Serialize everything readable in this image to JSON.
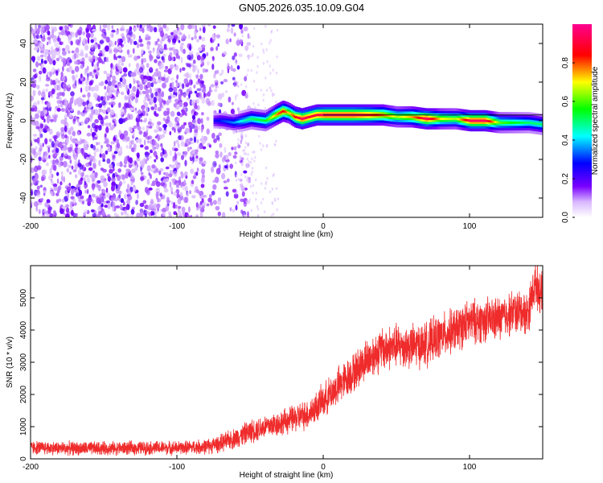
{
  "figure_title": "GN05.2026.035.10.09.G04",
  "chart_data": [
    {
      "type": "heatmap",
      "xlabel": "Height of straight line (km)",
      "ylabel": "Frequency (Hz)",
      "xlim": [
        -200,
        150
      ],
      "ylim": [
        -50,
        50
      ],
      "xticks": [
        -200,
        -100,
        0,
        100
      ],
      "yticks": [
        -40,
        -20,
        0,
        20,
        40
      ],
      "colorbar": {
        "label": "Normalized spectral amplitude",
        "range": [
          0,
          1
        ],
        "ticks": [
          "0.0",
          "0.2",
          "0.4",
          "0.6",
          "0.8"
        ],
        "colors": [
          "#ffffff",
          "#7a00ff",
          "#0000ff",
          "#00ffff",
          "#00ff00",
          "#ffff00",
          "#ff0000",
          "#ff0090"
        ]
      },
      "noise_region": {
        "x_range": [
          -200,
          -55
        ],
        "y_range": [
          -50,
          50
        ],
        "amplitude_range": [
          0.05,
          0.2
        ]
      },
      "ridge_line": {
        "x": [
          -75,
          -70,
          -62,
          -55,
          -50,
          -40,
          -33,
          -28,
          -24,
          -20,
          -15,
          -10,
          -5,
          0,
          10,
          20,
          30,
          40,
          50,
          60,
          70,
          80,
          90,
          100,
          110,
          120,
          130,
          140,
          150
        ],
        "y": [
          0,
          0,
          -1,
          0,
          1,
          0,
          3,
          5,
          4,
          2,
          1,
          2,
          3,
          3,
          3,
          3,
          3,
          3,
          2,
          2,
          1,
          1,
          1,
          0,
          0,
          -1,
          -1,
          -1,
          -2
        ],
        "amplitude": [
          0.25,
          0.3,
          0.35,
          0.45,
          0.5,
          0.55,
          0.75,
          0.85,
          0.7,
          0.85,
          0.95,
          0.9,
          0.9,
          0.95,
          0.95,
          0.95,
          0.9,
          0.8,
          0.65,
          0.75,
          0.95,
          0.7,
          0.65,
          0.95,
          0.95,
          0.6,
          0.55,
          0.5,
          0.5
        ]
      },
      "reference_line": {
        "x": [
          0,
          150
        ],
        "y": [
          3,
          3
        ]
      }
    },
    {
      "type": "line",
      "xlabel": "Height of straight line (km)",
      "ylabel": "SNR (10 * v/v)",
      "xlim": [
        -200,
        150
      ],
      "ylim": [
        0,
        6000
      ],
      "xticks": [
        -200,
        -100,
        0,
        100
      ],
      "yticks": [
        0,
        1000,
        2000,
        3000,
        4000,
        5000
      ],
      "series": [
        {
          "color": "#ef2b2b",
          "x": [
            -200,
            -180,
            -160,
            -140,
            -120,
            -100,
            -90,
            -80,
            -70,
            -60,
            -50,
            -40,
            -30,
            -20,
            -10,
            0,
            10,
            20,
            30,
            40,
            50,
            60,
            70,
            80,
            90,
            100,
            110,
            120,
            130,
            140,
            145,
            150
          ],
          "y": [
            350,
            330,
            320,
            330,
            340,
            340,
            360,
            380,
            480,
            650,
            850,
            1000,
            1100,
            1250,
            1400,
            1800,
            2250,
            2650,
            3100,
            3400,
            3500,
            3500,
            3550,
            3800,
            4000,
            4250,
            4300,
            4350,
            4550,
            4550,
            5500,
            5000
          ],
          "noise_amplitude": [
            250,
            250,
            250,
            250,
            250,
            250,
            250,
            280,
            320,
            380,
            420,
            450,
            450,
            500,
            550,
            600,
            700,
            700,
            750,
            800,
            800,
            800,
            800,
            800,
            800,
            800,
            800,
            800,
            800,
            800,
            800,
            800
          ]
        }
      ]
    }
  ]
}
